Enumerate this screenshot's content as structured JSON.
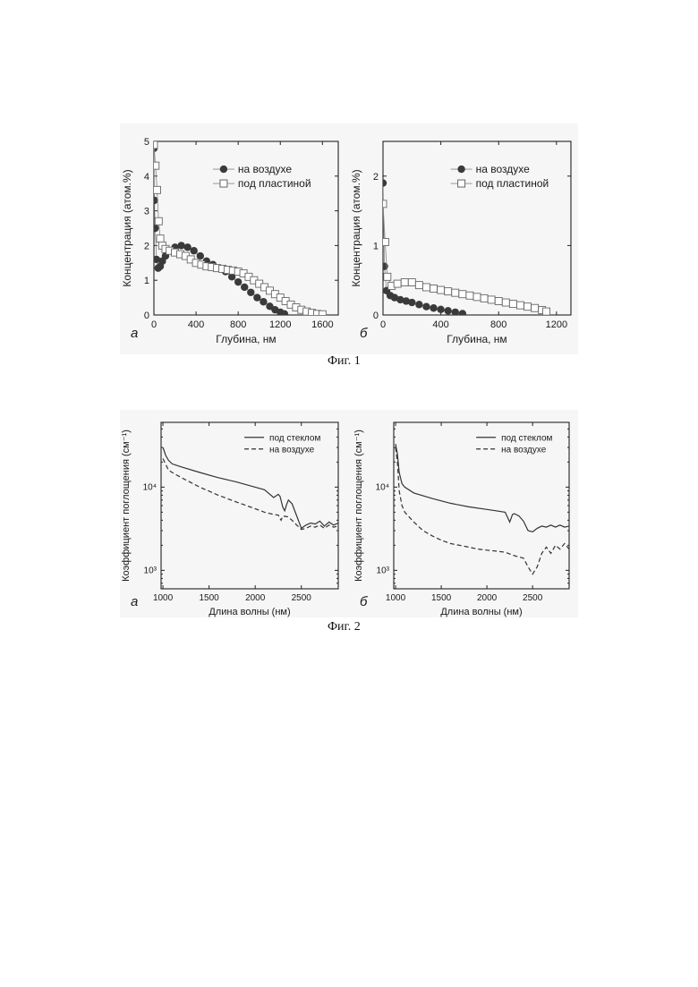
{
  "figures": [
    {
      "caption": "Фиг. 1"
    },
    {
      "caption": "Фиг. 2"
    }
  ],
  "chart_data": [
    {
      "type": "scatter",
      "panel": "а",
      "xlabel": "Глубина, нм",
      "ylabel": "Концентрация (атом.%)",
      "xlim": [
        0,
        1750
      ],
      "ylim": [
        0,
        5
      ],
      "xticks": [
        0,
        400,
        800,
        1200,
        1600
      ],
      "yticks": [
        0,
        1,
        2,
        3,
        4,
        5
      ],
      "ylog": false,
      "legend": "top-center",
      "series": [
        {
          "name": "на воздухе",
          "marker": "filled-circle",
          "line": true,
          "points": [
            [
              0,
              4.8
            ],
            [
              5,
              3.3
            ],
            [
              12,
              2.5
            ],
            [
              25,
              1.6
            ],
            [
              40,
              1.35
            ],
            [
              60,
              1.4
            ],
            [
              80,
              1.55
            ],
            [
              110,
              1.7
            ],
            [
              150,
              1.85
            ],
            [
              200,
              1.95
            ],
            [
              260,
              2.0
            ],
            [
              320,
              1.95
            ],
            [
              380,
              1.85
            ],
            [
              440,
              1.7
            ],
            [
              500,
              1.55
            ],
            [
              560,
              1.45
            ],
            [
              620,
              1.35
            ],
            [
              680,
              1.25
            ],
            [
              740,
              1.1
            ],
            [
              800,
              0.95
            ],
            [
              860,
              0.8
            ],
            [
              920,
              0.65
            ],
            [
              980,
              0.5
            ],
            [
              1040,
              0.38
            ],
            [
              1100,
              0.25
            ],
            [
              1150,
              0.15
            ],
            [
              1200,
              0.08
            ],
            [
              1240,
              0.03
            ]
          ]
        },
        {
          "name": "под пластиной",
          "marker": "open-square",
          "line": true,
          "points": [
            [
              0,
              4.9
            ],
            [
              15,
              4.3
            ],
            [
              30,
              3.6
            ],
            [
              45,
              2.7
            ],
            [
              60,
              2.2
            ],
            [
              80,
              2.0
            ],
            [
              110,
              1.9
            ],
            [
              150,
              1.85
            ],
            [
              200,
              1.8
            ],
            [
              250,
              1.75
            ],
            [
              300,
              1.7
            ],
            [
              350,
              1.6
            ],
            [
              400,
              1.5
            ],
            [
              450,
              1.45
            ],
            [
              500,
              1.4
            ],
            [
              550,
              1.38
            ],
            [
              600,
              1.35
            ],
            [
              650,
              1.33
            ],
            [
              700,
              1.3
            ],
            [
              750,
              1.28
            ],
            [
              800,
              1.25
            ],
            [
              850,
              1.2
            ],
            [
              900,
              1.1
            ],
            [
              950,
              1.0
            ],
            [
              1000,
              0.9
            ],
            [
              1050,
              0.8
            ],
            [
              1100,
              0.7
            ],
            [
              1150,
              0.6
            ],
            [
              1200,
              0.5
            ],
            [
              1250,
              0.4
            ],
            [
              1300,
              0.3
            ],
            [
              1350,
              0.22
            ],
            [
              1400,
              0.15
            ],
            [
              1450,
              0.1
            ],
            [
              1500,
              0.06
            ],
            [
              1550,
              0.03
            ],
            [
              1600,
              0.02
            ]
          ]
        }
      ]
    },
    {
      "type": "scatter",
      "panel": "б",
      "xlabel": "Глубина, нм",
      "ylabel": "Концентрация (атом.%)",
      "xlim": [
        0,
        1300
      ],
      "ylim": [
        0,
        2.5
      ],
      "xticks": [
        0,
        400,
        800,
        1200
      ],
      "yticks": [
        0,
        1,
        2
      ],
      "ylog": false,
      "legend": "top-center",
      "series": [
        {
          "name": "на воздухе",
          "marker": "filled-circle",
          "line": true,
          "points": [
            [
              0,
              1.9
            ],
            [
              10,
              0.7
            ],
            [
              25,
              0.35
            ],
            [
              50,
              0.28
            ],
            [
              80,
              0.25
            ],
            [
              120,
              0.22
            ],
            [
              160,
              0.2
            ],
            [
              200,
              0.18
            ],
            [
              250,
              0.15
            ],
            [
              300,
              0.12
            ],
            [
              350,
              0.1
            ],
            [
              400,
              0.08
            ],
            [
              450,
              0.06
            ],
            [
              500,
              0.04
            ],
            [
              550,
              0.02
            ]
          ]
        },
        {
          "name": "под пластиной",
          "marker": "open-square",
          "line": true,
          "points": [
            [
              0,
              1.6
            ],
            [
              15,
              1.05
            ],
            [
              30,
              0.55
            ],
            [
              60,
              0.42
            ],
            [
              100,
              0.45
            ],
            [
              150,
              0.47
            ],
            [
              200,
              0.47
            ],
            [
              250,
              0.43
            ],
            [
              300,
              0.4
            ],
            [
              350,
              0.38
            ],
            [
              400,
              0.36
            ],
            [
              450,
              0.34
            ],
            [
              500,
              0.32
            ],
            [
              550,
              0.3
            ],
            [
              600,
              0.28
            ],
            [
              650,
              0.26
            ],
            [
              700,
              0.24
            ],
            [
              750,
              0.22
            ],
            [
              800,
              0.2
            ],
            [
              850,
              0.18
            ],
            [
              900,
              0.16
            ],
            [
              950,
              0.14
            ],
            [
              1000,
              0.12
            ],
            [
              1050,
              0.1
            ],
            [
              1100,
              0.07
            ],
            [
              1130,
              0.05
            ]
          ]
        }
      ]
    },
    {
      "type": "line",
      "panel": "а",
      "xlabel": "Длина волны (нм)",
      "ylabel": "Коэффициент поглощения (см⁻¹)",
      "xlim": [
        980,
        2900
      ],
      "ylim": [
        600,
        60000
      ],
      "ylog": true,
      "xticks": [
        1000,
        1500,
        2000,
        2500
      ],
      "yticks": [
        1000,
        10000
      ],
      "ytick_labels": [
        "10³",
        "10⁴"
      ],
      "legend": "top-right",
      "series": [
        {
          "name": "под стеклом",
          "style": "solid",
          "points": [
            [
              1000,
              30000
            ],
            [
              1030,
              24000
            ],
            [
              1060,
              21000
            ],
            [
              1100,
              19000
            ],
            [
              1200,
              17500
            ],
            [
              1400,
              15000
            ],
            [
              1600,
              13000
            ],
            [
              1800,
              11500
            ],
            [
              2000,
              10000
            ],
            [
              2100,
              9300
            ],
            [
              2200,
              7500
            ],
            [
              2250,
              8200
            ],
            [
              2270,
              7700
            ],
            [
              2300,
              5700
            ],
            [
              2320,
              5200
            ],
            [
              2340,
              6200
            ],
            [
              2360,
              7000
            ],
            [
              2400,
              6300
            ],
            [
              2450,
              4500
            ],
            [
              2500,
              3200
            ],
            [
              2550,
              3500
            ],
            [
              2600,
              3700
            ],
            [
              2650,
              3600
            ],
            [
              2700,
              3900
            ],
            [
              2750,
              3400
            ],
            [
              2800,
              3800
            ],
            [
              2850,
              3500
            ],
            [
              2900,
              3700
            ]
          ]
        },
        {
          "name": "на воздухе",
          "style": "dashed",
          "points": [
            [
              1000,
              22000
            ],
            [
              1060,
              16000
            ],
            [
              1100,
              15000
            ],
            [
              1200,
              13000
            ],
            [
              1400,
              10000
            ],
            [
              1600,
              8000
            ],
            [
              1800,
              6600
            ],
            [
              2000,
              5500
            ],
            [
              2100,
              5000
            ],
            [
              2200,
              4700
            ],
            [
              2250,
              4600
            ],
            [
              2280,
              4000
            ],
            [
              2300,
              4500
            ],
            [
              2350,
              4400
            ],
            [
              2400,
              4000
            ],
            [
              2450,
              3500
            ],
            [
              2500,
              3100
            ],
            [
              2550,
              3200
            ],
            [
              2600,
              3400
            ],
            [
              2650,
              3300
            ],
            [
              2700,
              3500
            ],
            [
              2750,
              3200
            ],
            [
              2800,
              3500
            ],
            [
              2850,
              3300
            ],
            [
              2900,
              3400
            ]
          ]
        }
      ]
    },
    {
      "type": "line",
      "panel": "б",
      "xlabel": "Длина волны (нм)",
      "ylabel": "Коэффициент поглощения (см⁻¹)",
      "xlim": [
        980,
        2900
      ],
      "ylim": [
        600,
        60000
      ],
      "ylog": true,
      "xticks": [
        1000,
        1500,
        2000,
        2500
      ],
      "yticks": [
        1000,
        10000
      ],
      "ytick_labels": [
        "10³",
        "10⁴"
      ],
      "legend": "top-right",
      "series": [
        {
          "name": "под стеклом",
          "style": "solid",
          "points": [
            [
              1000,
              33000
            ],
            [
              1020,
              25000
            ],
            [
              1040,
              15000
            ],
            [
              1070,
              11000
            ],
            [
              1100,
              10000
            ],
            [
              1200,
              8500
            ],
            [
              1400,
              7300
            ],
            [
              1600,
              6400
            ],
            [
              1800,
              5800
            ],
            [
              2000,
              5400
            ],
            [
              2100,
              5200
            ],
            [
              2200,
              5000
            ],
            [
              2250,
              3800
            ],
            [
              2280,
              4700
            ],
            [
              2300,
              4800
            ],
            [
              2350,
              4500
            ],
            [
              2400,
              3900
            ],
            [
              2450,
              3000
            ],
            [
              2500,
              2900
            ],
            [
              2550,
              3200
            ],
            [
              2600,
              3400
            ],
            [
              2650,
              3300
            ],
            [
              2700,
              3500
            ],
            [
              2750,
              3300
            ],
            [
              2800,
              3500
            ],
            [
              2850,
              3300
            ],
            [
              2900,
              3400
            ]
          ]
        },
        {
          "name": "на воздухе",
          "style": "dashed",
          "points": [
            [
              1000,
              30000
            ],
            [
              1020,
              20000
            ],
            [
              1040,
              9000
            ],
            [
              1070,
              6000
            ],
            [
              1100,
              5000
            ],
            [
              1200,
              3800
            ],
            [
              1300,
              3000
            ],
            [
              1400,
              2600
            ],
            [
              1500,
              2300
            ],
            [
              1600,
              2100
            ],
            [
              1700,
              2000
            ],
            [
              1800,
              1900
            ],
            [
              1900,
              1800
            ],
            [
              2000,
              1750
            ],
            [
              2100,
              1700
            ],
            [
              2200,
              1650
            ],
            [
              2300,
              1500
            ],
            [
              2400,
              1400
            ],
            [
              2450,
              1100
            ],
            [
              2500,
              900
            ],
            [
              2550,
              1100
            ],
            [
              2600,
              1600
            ],
            [
              2650,
              1900
            ],
            [
              2700,
              1600
            ],
            [
              2750,
              2000
            ],
            [
              2800,
              1800
            ],
            [
              2850,
              2100
            ],
            [
              2900,
              1800
            ]
          ]
        }
      ]
    }
  ]
}
